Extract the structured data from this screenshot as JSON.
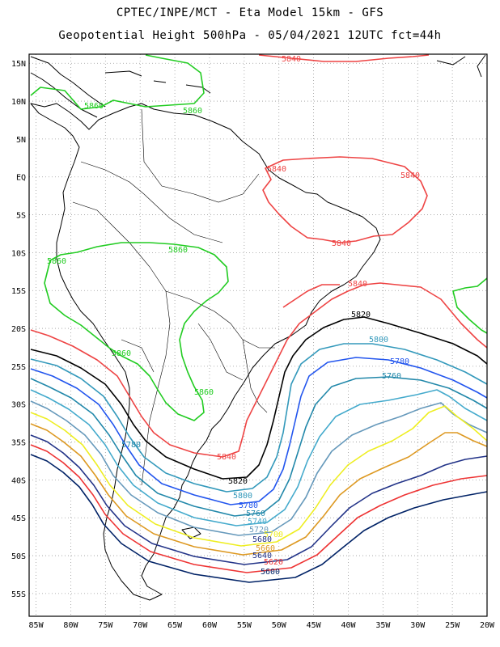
{
  "title": {
    "line1": "CPTEC/INPE/MCT -  Eta Model 15km - GFS",
    "line2": "Geopotential Height 500hPa - 05/04/2021 12UTC fct=44h"
  },
  "axes": {
    "lat_labels": [
      "15N",
      "10N",
      "5N",
      "EQ",
      "5S",
      "10S",
      "15S",
      "20S",
      "25S",
      "30S",
      "35S",
      "40S",
      "45S",
      "50S",
      "55S"
    ],
    "lat_values": [
      15,
      10,
      5,
      0,
      -5,
      -10,
      -15,
      -20,
      -25,
      -30,
      -35,
      -40,
      -45,
      -50,
      -55
    ],
    "lon_labels": [
      "85W",
      "80W",
      "75W",
      "70W",
      "65W",
      "60W",
      "55W",
      "50W",
      "45W",
      "40W",
      "35W",
      "30W",
      "25W",
      "20W"
    ],
    "lon_values": [
      -85,
      -80,
      -75,
      -70,
      -65,
      -60,
      -55,
      -50,
      -45,
      -40,
      -35,
      -30,
      -25,
      -20
    ]
  },
  "contours": {
    "colors": {
      "c5860": "#22cc22",
      "c5840": "#ee4444",
      "c5820": "#000000",
      "c5800": "#3399bb",
      "c5780": "#2255ee",
      "c5760": "#2288aa",
      "c5740": "#44aacc",
      "c5720": "#6699bb",
      "c5700": "#eeee22",
      "c5680": "#dd9922",
      "c5640": "#223388",
      "c5620": "#ee3333",
      "c5600": "#002266"
    },
    "labels": {
      "l5840_top": "5840",
      "l5860_a": "5860",
      "l5860_b": "5860",
      "l5840_eq": "5840",
      "l5840_eq2": "5840",
      "l5860_c": "5860",
      "l5860_d": "5860",
      "l5840_ne": "5840",
      "l5840_se": "5840",
      "l5820_a": "5820",
      "l5800_a": "5800",
      "l5780_a": "5780",
      "l5760_a": "5760",
      "l5860_e": "5860",
      "l5860_f": "5860",
      "l5780_w": "5780",
      "l5840_s": "5840",
      "l5820_s": "5820",
      "l5800_s": "5800",
      "l5780_s": "5780",
      "l5760_s": "5760",
      "l5740_s": "5740",
      "l5720_s": "5720",
      "l5700_s": "5700",
      "l5680_s": "5680",
      "l5660_s": "5660",
      "l5640_s": "5640",
      "l5620_s": "5620",
      "l5600_s": "5600"
    }
  }
}
